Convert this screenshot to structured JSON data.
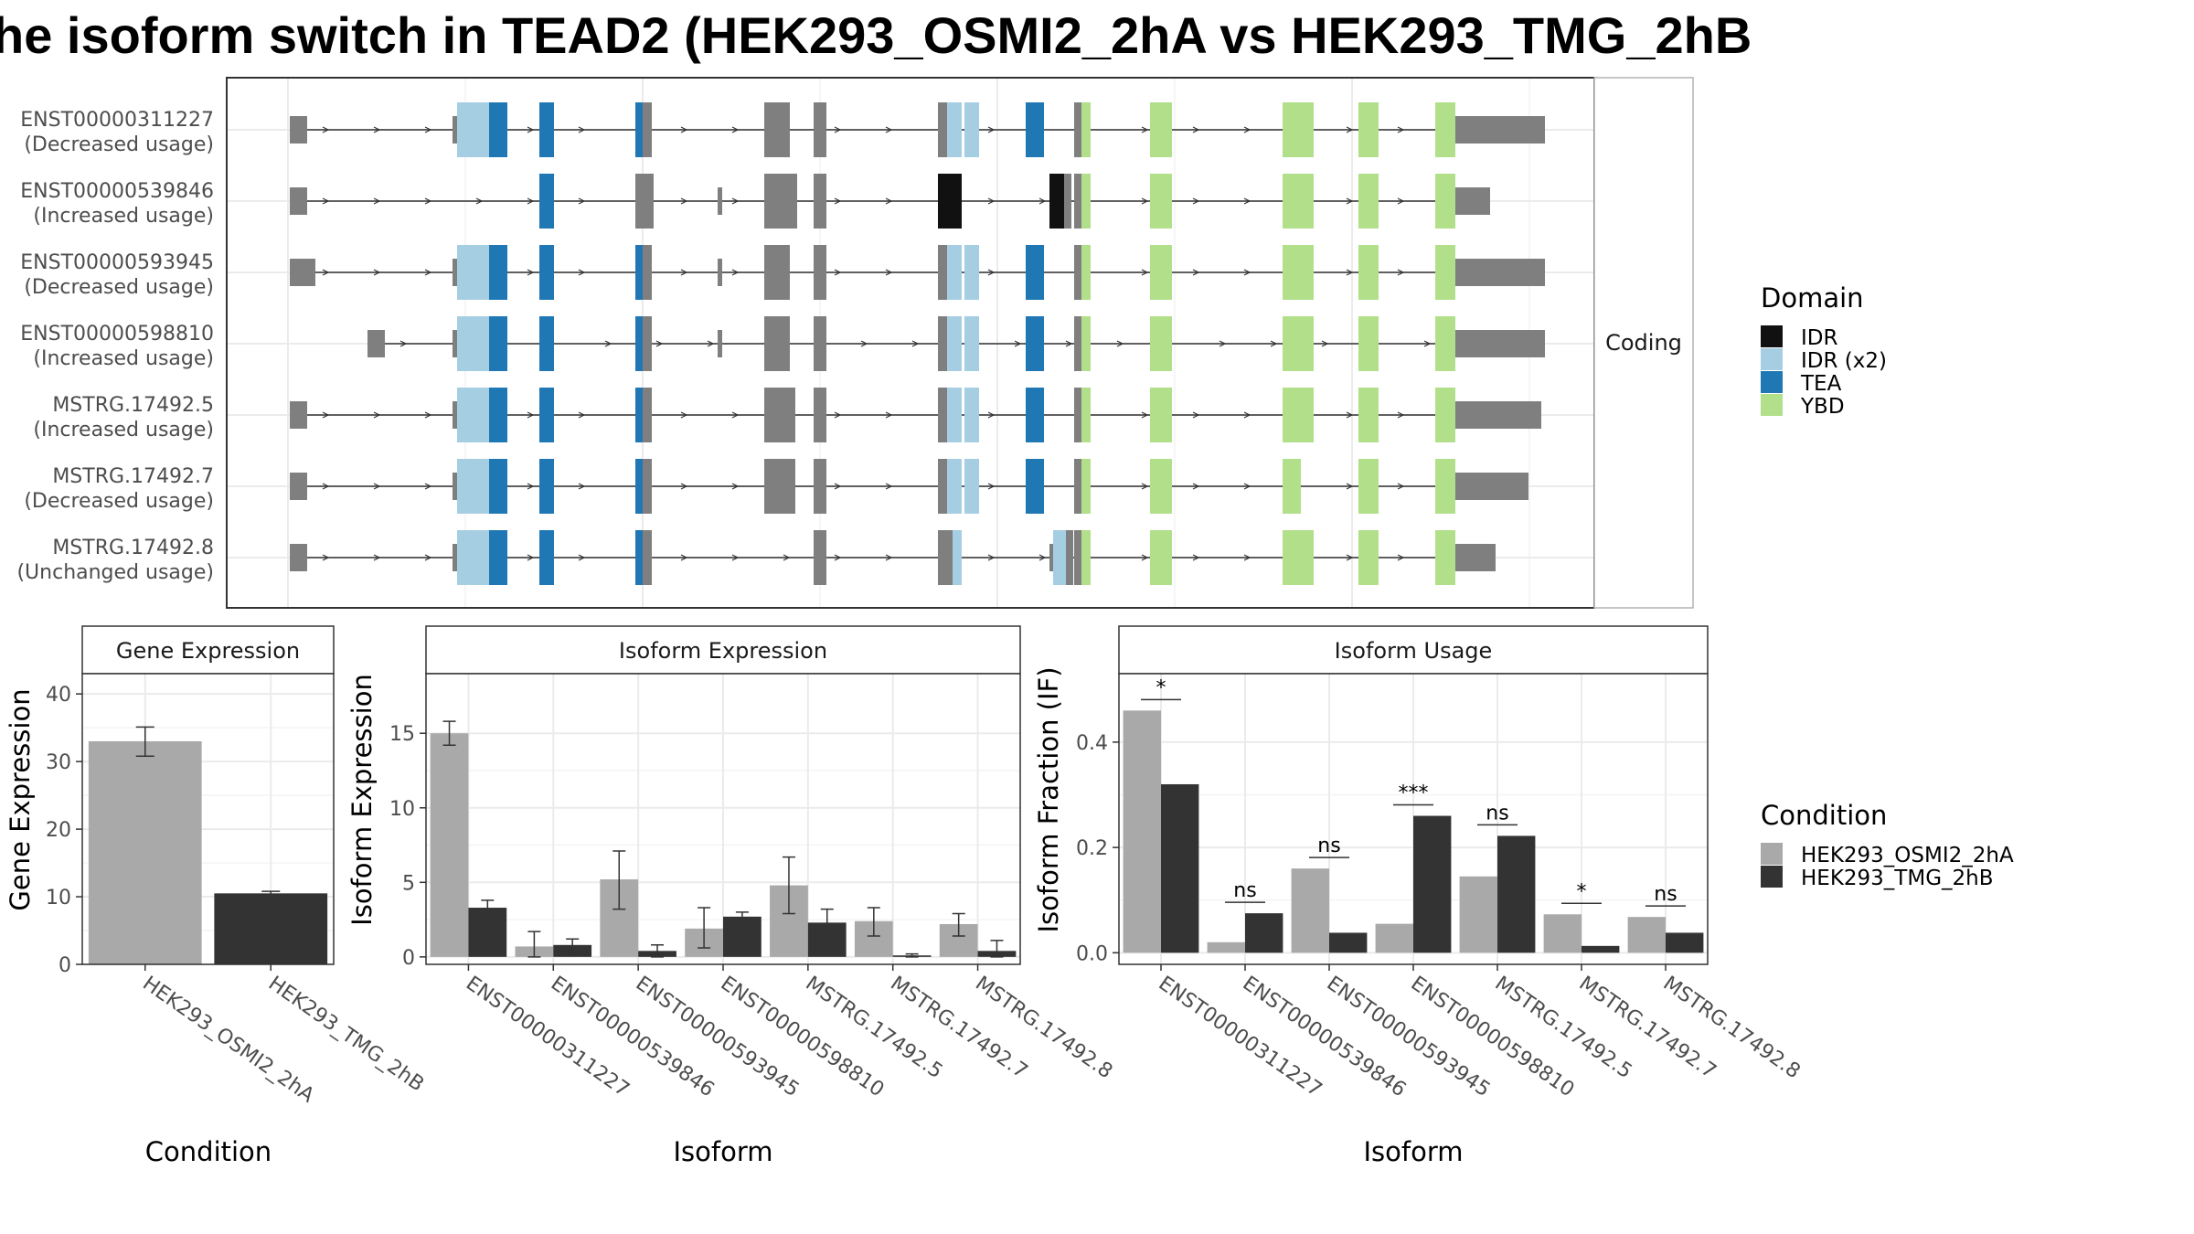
{
  "title": "he isoform switch in TEAD2 (HEK293_OSMI2_2hA vs HEK293_TMG_2hB",
  "colors": {
    "IDR": "#111111",
    "IDR (x2)": "#a6cee3",
    "TEA": "#1f78b4",
    "YBD": "#b2df8a",
    "noncoding": "#7f7f7f",
    "cond_a": "#a9a9a9",
    "cond_b": "#333333"
  },
  "structure": {
    "strip": "Coding",
    "transcripts": [
      {
        "id": "ENST00000311227",
        "usage": "(Decreased usage)"
      },
      {
        "id": "ENST00000539846",
        "usage": "(Increased usage)"
      },
      {
        "id": "ENST00000593945",
        "usage": "(Decreased usage)"
      },
      {
        "id": "ENST00000598810",
        "usage": "(Increased usage)"
      },
      {
        "id": "MSTRG.17492.5",
        "usage": "(Increased usage)"
      },
      {
        "id": "MSTRG.17492.7",
        "usage": "(Decreased usage)"
      },
      {
        "id": "MSTRG.17492.8",
        "usage": "(Unchanged usage)"
      }
    ]
  },
  "legend_domain": {
    "title": "Domain",
    "items": [
      "IDR",
      "IDR (x2)",
      "TEA",
      "YBD"
    ]
  },
  "legend_condition": {
    "title": "Condition",
    "items": [
      "HEK293_OSMI2_2hA",
      "HEK293_TMG_2hB"
    ]
  },
  "chart_data": [
    {
      "type": "bar",
      "strip": "Gene Expression",
      "xlabel": "Condition",
      "ylabel": "Gene Expression",
      "ylim": [
        0,
        43
      ],
      "yticks": [
        0,
        10,
        20,
        30,
        40
      ],
      "categories": [
        "HEK293_OSMI2_2hA",
        "HEK293_TMG_2hB"
      ],
      "values": [
        33,
        10.5
      ],
      "err_lo": [
        30.8,
        10.2
      ],
      "err_hi": [
        35.1,
        10.8
      ]
    },
    {
      "type": "bar",
      "strip": "Isoform Expression",
      "xlabel": "Isoform",
      "ylabel": "Isoform Expression",
      "ylim": [
        -0.5,
        19
      ],
      "yticks": [
        0,
        5,
        10,
        15
      ],
      "categories": [
        "ENST00000311227",
        "ENST00000539846",
        "ENST00000593945",
        "ENST00000598810",
        "MSTRG.17492.5",
        "MSTRG.17492.7",
        "MSTRG.17492.8"
      ],
      "series": [
        {
          "name": "HEK293_OSMI2_2hA",
          "values": [
            15.0,
            0.7,
            5.2,
            1.9,
            4.8,
            2.4,
            2.2
          ],
          "err_lo": [
            14.2,
            0.0,
            3.2,
            0.6,
            2.9,
            1.4,
            1.4
          ],
          "err_hi": [
            15.8,
            1.7,
            7.1,
            3.3,
            6.7,
            3.3,
            2.9
          ]
        },
        {
          "name": "HEK293_TMG_2hB",
          "values": [
            3.3,
            0.8,
            0.4,
            2.7,
            2.3,
            0.1,
            0.4
          ],
          "err_lo": [
            2.7,
            0.2,
            0.0,
            2.3,
            1.5,
            0.0,
            0.0
          ],
          "err_hi": [
            3.8,
            1.2,
            0.8,
            3.0,
            3.2,
            0.2,
            1.1
          ]
        }
      ]
    },
    {
      "type": "bar",
      "strip": "Isoform Usage",
      "xlabel": "Isoform",
      "ylabel": "Isoform Fraction (IF)",
      "ylim": [
        -0.022,
        0.53
      ],
      "yticks": [
        0.0,
        0.2,
        0.4
      ],
      "ytick_labels": [
        "0.0",
        "0.2",
        "0.4"
      ],
      "categories": [
        "ENST00000311227",
        "ENST00000539846",
        "ENST00000593945",
        "ENST00000598810",
        "MSTRG.17492.5",
        "MSTRG.17492.7",
        "MSTRG.17492.8"
      ],
      "series": [
        {
          "name": "HEK293_OSMI2_2hA",
          "values": [
            0.46,
            0.02,
            0.16,
            0.055,
            0.145,
            0.073,
            0.068
          ]
        },
        {
          "name": "HEK293_TMG_2hB",
          "values": [
            0.32,
            0.075,
            0.038,
            0.26,
            0.222,
            0.013,
            0.038
          ]
        }
      ],
      "significance": [
        "*",
        "ns",
        "ns",
        "***",
        "ns",
        "*",
        "ns"
      ]
    }
  ]
}
